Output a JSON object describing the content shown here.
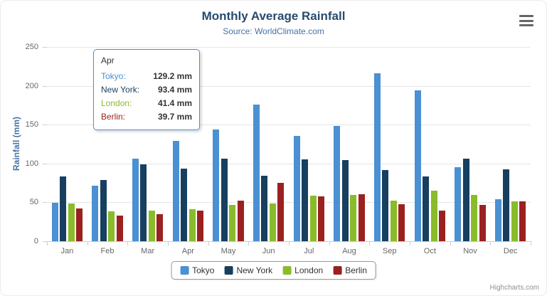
{
  "chart_data": {
    "type": "bar",
    "title": "Monthly Average Rainfall",
    "subtitle": "Source: WorldClimate.com",
    "xlabel": "",
    "ylabel": "Rainfall (mm)",
    "ylim": [
      0,
      250
    ],
    "ytick_interval": 50,
    "grid": true,
    "legend_position": "bottom",
    "categories": [
      "Jan",
      "Feb",
      "Mar",
      "Apr",
      "May",
      "Jun",
      "Jul",
      "Aug",
      "Sep",
      "Oct",
      "Nov",
      "Dec"
    ],
    "series": [
      {
        "name": "Tokyo",
        "color": "#4a90d2",
        "values": [
          49.9,
          71.5,
          106.4,
          129.2,
          144.0,
          176.0,
          135.6,
          148.5,
          216.4,
          194.1,
          95.6,
          54.4
        ]
      },
      {
        "name": "New York",
        "color": "#173f5f",
        "values": [
          83.6,
          78.8,
          98.5,
          93.4,
          106.0,
          84.5,
          105.0,
          104.3,
          91.2,
          83.5,
          106.6,
          92.3
        ]
      },
      {
        "name": "London",
        "color": "#8abb2a",
        "values": [
          48.9,
          38.8,
          39.3,
          41.4,
          47.0,
          48.3,
          59.0,
          59.6,
          52.4,
          65.2,
          59.3,
          51.2
        ]
      },
      {
        "name": "Berlin",
        "color": "#9b2020",
        "values": [
          42.4,
          33.2,
          34.5,
          39.7,
          52.6,
          75.5,
          57.4,
          60.4,
          47.6,
          39.1,
          46.8,
          51.1
        ]
      }
    ]
  },
  "tooltip": {
    "header": "Apr",
    "border_color": "#4a90d2",
    "rows": [
      {
        "name": "Tokyo:",
        "value": "129.2 mm",
        "color": "#4a90d2"
      },
      {
        "name": "New York:",
        "value": "93.4 mm",
        "color": "#173f5f"
      },
      {
        "name": "London:",
        "value": "41.4 mm",
        "color": "#8abb2a"
      },
      {
        "name": "Berlin:",
        "value": "39.7 mm",
        "color": "#9b2020"
      }
    ]
  },
  "colors": {
    "title": "#274b6d",
    "subtitle": "#4572a7",
    "axis_label": "#666666",
    "gridline": "#e6e6e6",
    "axis_line": "#c0d0e0"
  },
  "credits": "Highcharts.com"
}
